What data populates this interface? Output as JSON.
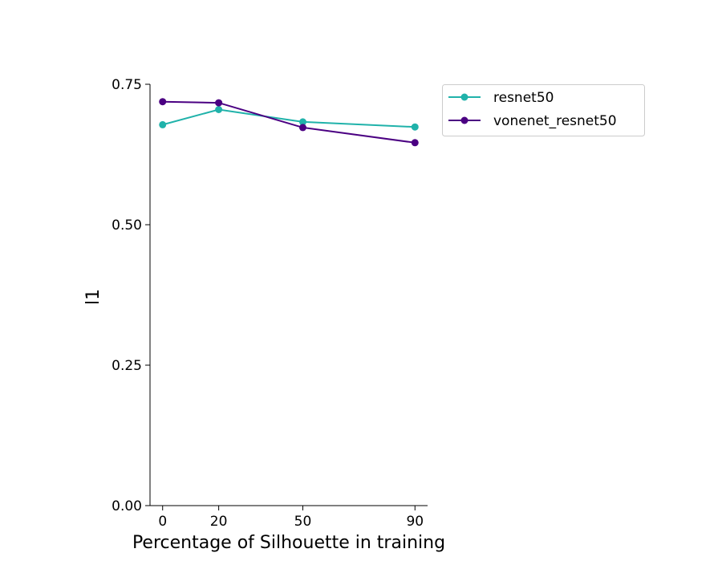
{
  "chart_data": {
    "type": "line",
    "title": "",
    "xlabel": "Percentage of Silhouette in training",
    "ylabel": "l1",
    "x": [
      0,
      20,
      50,
      90
    ],
    "x_ticks": [
      0,
      20,
      50,
      90
    ],
    "x_tick_labels": [
      "0",
      "20",
      "50",
      "90"
    ],
    "xlim": [
      -4.5,
      94.5
    ],
    "ylim": [
      0.0,
      0.75
    ],
    "y_ticks": [
      0.0,
      0.25,
      0.5,
      0.75
    ],
    "y_tick_labels": [
      "0.00",
      "0.25",
      "0.50",
      "0.75"
    ],
    "grid": false,
    "legend_position": "outside top-right",
    "series": [
      {
        "name": "resnet50",
        "color": "#20b2aa",
        "marker": "circle",
        "values": [
          0.678,
          0.705,
          0.683,
          0.674
        ]
      },
      {
        "name": "vonenet_resnet50",
        "color": "#4b0082",
        "marker": "circle",
        "values": [
          0.719,
          0.717,
          0.673,
          0.646
        ]
      }
    ]
  }
}
